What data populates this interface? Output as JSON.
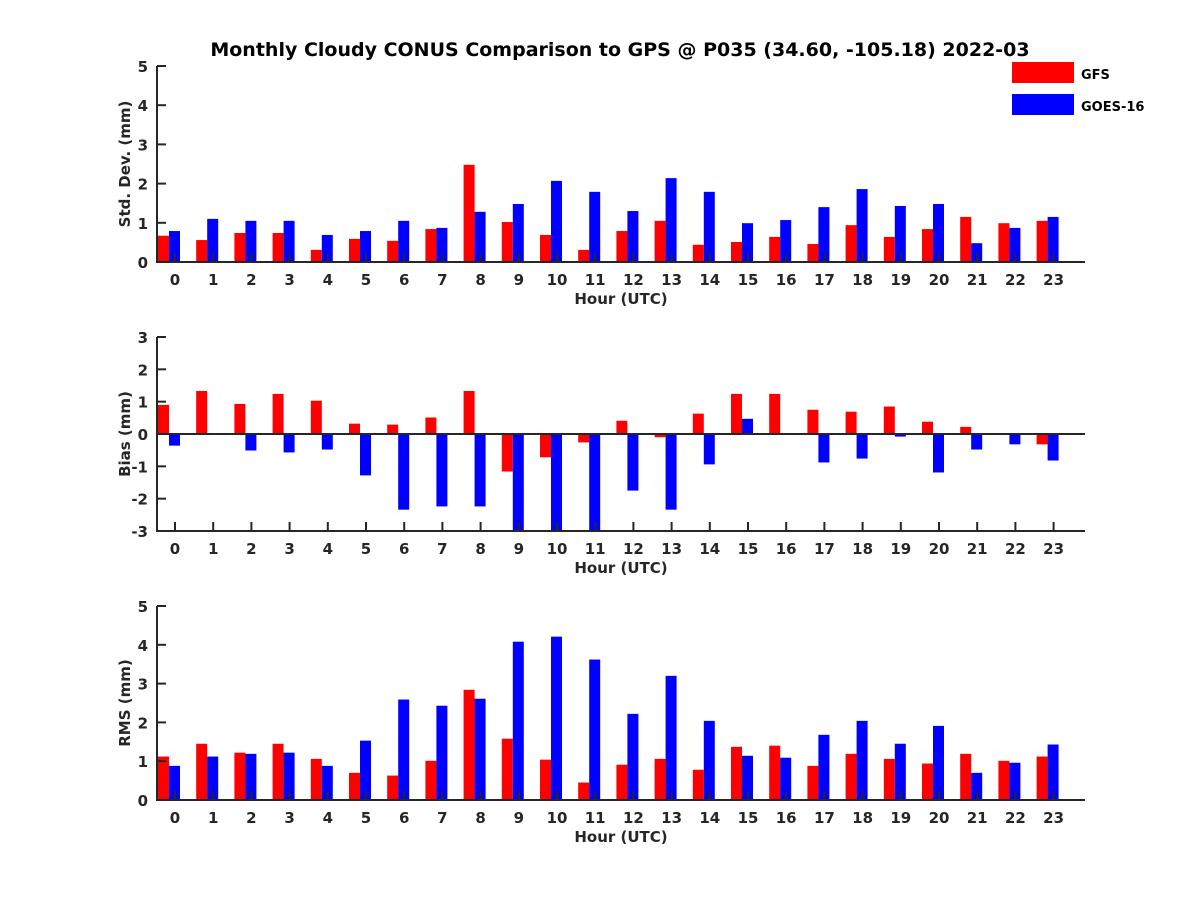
{
  "chart_data": [
    {
      "type": "bar",
      "title": "Monthly Cloudy CONUS Comparison to GPS @ P035 (34.60, -105.18) 2022-03",
      "xlabel": "Hour (UTC)",
      "ylabel": "Std. Dev. (mm)",
      "ylim": [
        0,
        5
      ],
      "yticks": [
        0,
        1,
        2,
        3,
        4,
        5
      ],
      "categories": [
        "0",
        "1",
        "2",
        "3",
        "4",
        "5",
        "6",
        "7",
        "8",
        "9",
        "10",
        "11",
        "12",
        "13",
        "14",
        "15",
        "16",
        "17",
        "18",
        "19",
        "20",
        "21",
        "22",
        "23"
      ],
      "series": [
        {
          "name": "GFS",
          "color": "#ff0000",
          "values": [
            0.67,
            0.56,
            0.74,
            0.74,
            0.31,
            0.59,
            0.54,
            0.84,
            2.48,
            1.02,
            0.69,
            0.31,
            0.79,
            1.05,
            0.44,
            0.51,
            0.64,
            0.46,
            0.94,
            0.64,
            0.84,
            1.15,
            0.99,
            1.05
          ]
        },
        {
          "name": "GOES-16",
          "color": "#0000ff",
          "values": [
            0.79,
            1.1,
            1.05,
            1.05,
            0.69,
            0.79,
            1.05,
            0.87,
            1.28,
            1.48,
            2.07,
            1.79,
            1.3,
            2.14,
            1.79,
            0.99,
            1.07,
            1.4,
            1.86,
            1.43,
            1.48,
            0.48,
            0.87,
            1.15
          ]
        }
      ]
    },
    {
      "type": "bar",
      "title": "",
      "xlabel": "Hour (UTC)",
      "ylabel": "Bias (mm)",
      "ylim": [
        -3,
        3
      ],
      "yticks": [
        -3,
        -2,
        -1,
        0,
        1,
        2,
        3
      ],
      "zero_line": true,
      "categories": [
        "0",
        "1",
        "2",
        "3",
        "4",
        "5",
        "6",
        "7",
        "8",
        "9",
        "10",
        "11",
        "12",
        "13",
        "14",
        "15",
        "16",
        "17",
        "18",
        "19",
        "20",
        "21",
        "22",
        "23"
      ],
      "series": [
        {
          "name": "GFS",
          "color": "#ff0000",
          "values": [
            0.9,
            1.33,
            0.93,
            1.24,
            1.03,
            0.32,
            0.29,
            0.51,
            1.33,
            -1.16,
            -0.72,
            -0.26,
            0.41,
            -0.1,
            0.63,
            1.24,
            1.24,
            0.75,
            0.69,
            0.85,
            0.38,
            0.22,
            0.0,
            -0.32
          ]
        },
        {
          "name": "GOES-16",
          "color": "#0000ff",
          "values": [
            -0.36,
            0.0,
            -0.51,
            -0.57,
            -0.48,
            -1.28,
            -2.34,
            -2.24,
            -2.24,
            -3.0,
            -3.0,
            -3.0,
            -1.75,
            -2.34,
            -0.94,
            0.47,
            0.0,
            -0.88,
            -0.76,
            -0.08,
            -1.19,
            -0.48,
            -0.32,
            -0.82
          ]
        }
      ]
    },
    {
      "type": "bar",
      "title": "",
      "xlabel": "Hour (UTC)",
      "ylabel": "RMS (mm)",
      "ylim": [
        0,
        5
      ],
      "yticks": [
        0,
        1,
        2,
        3,
        4,
        5
      ],
      "categories": [
        "0",
        "1",
        "2",
        "3",
        "4",
        "5",
        "6",
        "7",
        "8",
        "9",
        "10",
        "11",
        "12",
        "13",
        "14",
        "15",
        "16",
        "17",
        "18",
        "19",
        "20",
        "21",
        "22",
        "23"
      ],
      "series": [
        {
          "name": "GFS",
          "color": "#ff0000",
          "values": [
            1.12,
            1.45,
            1.22,
            1.45,
            1.06,
            0.7,
            0.63,
            1.01,
            2.84,
            1.58,
            1.04,
            0.45,
            0.91,
            1.06,
            0.78,
            1.37,
            1.4,
            0.88,
            1.19,
            1.06,
            0.94,
            1.19,
            1.01,
            1.12
          ]
        },
        {
          "name": "GOES-16",
          "color": "#0000ff",
          "values": [
            0.88,
            1.12,
            1.19,
            1.22,
            0.88,
            1.53,
            2.59,
            2.43,
            2.61,
            4.08,
            4.21,
            3.62,
            2.22,
            3.2,
            2.04,
            1.14,
            1.09,
            1.68,
            2.04,
            1.45,
            1.91,
            0.7,
            0.96,
            1.43
          ]
        }
      ]
    }
  ],
  "legend": {
    "position": "top-right",
    "entries": [
      {
        "label": "GFS",
        "color": "#ff0000"
      },
      {
        "label": "GOES-16",
        "color": "#0000ff"
      }
    ]
  }
}
